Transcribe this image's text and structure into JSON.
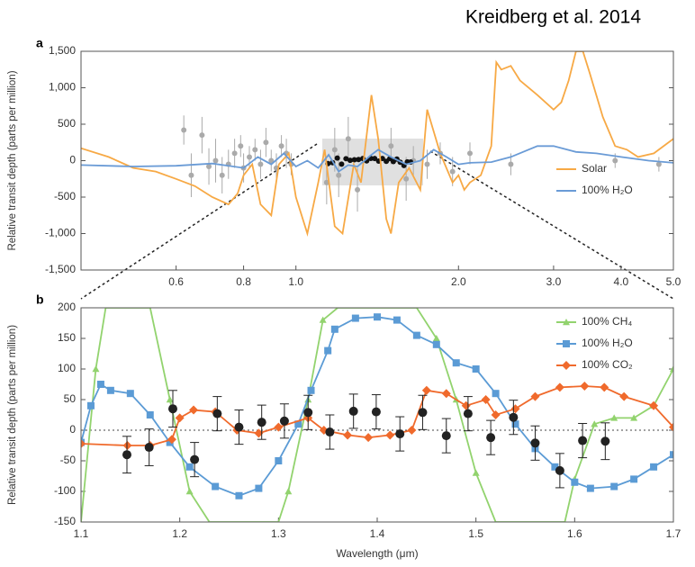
{
  "credit": "Kreidberg et al. 2014",
  "chart_data": [
    {
      "type": "line",
      "panel_label": "a",
      "ylabel": "Relative transit depth (parts per million)",
      "xscale": "log",
      "xlim": [
        0.4,
        5.0
      ],
      "xticks": [
        0.6,
        0.8,
        {
          "value": 1.0,
          "label": "1.0"
        },
        {
          "value": 2.0,
          "label": "2.0"
        },
        {
          "value": 3.0,
          "label": "3.0"
        },
        {
          "value": 4.0,
          "label": "4.0"
        },
        {
          "value": 5.0,
          "label": "5.0"
        }
      ],
      "ylim": [
        -1500,
        1500
      ],
      "yticks": [
        {
          "value": -1500,
          "label": "-1,500"
        },
        {
          "value": -1000,
          "label": "-1,000"
        },
        -500,
        0,
        500,
        {
          "value": 1000,
          "label": "1,000"
        },
        {
          "value": 1500,
          "label": "1,500"
        }
      ],
      "legend": "lower right",
      "series": [
        {
          "type": "errorbar",
          "color": "#aaaaaa",
          "x": [
            0.62,
            0.64,
            0.67,
            0.69,
            0.71,
            0.73,
            0.75,
            0.77,
            0.79,
            0.8,
            0.82,
            0.84,
            0.86,
            0.88,
            0.9,
            0.92,
            0.94,
            0.96,
            0.98,
            1.14,
            1.18,
            1.2,
            1.25,
            1.3,
            1.5,
            1.6,
            1.65,
            1.75,
            1.85,
            1.95,
            2.1,
            2.5,
            3.9,
            4.7
          ],
          "values": [
            420,
            -200,
            350,
            -80,
            0,
            -200,
            -50,
            100,
            200,
            -100,
            50,
            150,
            -50,
            250,
            0,
            -100,
            200,
            100,
            -50,
            -300,
            150,
            -200,
            300,
            -400,
            200,
            -250,
            0,
            -50,
            100,
            -150,
            100,
            -50,
            0,
            -50
          ],
          "errors": [
            200,
            300,
            250,
            250,
            300,
            250,
            200,
            200,
            150,
            200,
            150,
            150,
            200,
            200,
            150,
            200,
            150,
            200,
            150,
            300,
            300,
            300,
            300,
            300,
            250,
            300,
            200,
            200,
            150,
            200,
            150,
            150,
            100,
            100
          ]
        },
        {
          "type": "errorbar",
          "color": "#111111",
          "x": [
            1.1465,
            1.169,
            1.193,
            1.215,
            1.238,
            1.26,
            1.283,
            1.306,
            1.33,
            1.352,
            1.376,
            1.399,
            1.423,
            1.446,
            1.47,
            1.492,
            1.515,
            1.538,
            1.56,
            1.585,
            1.608,
            1.631
          ],
          "values": [
            -40,
            -28,
            35,
            -48,
            27,
            5,
            13,
            15,
            29,
            -3,
            31,
            30,
            -6,
            29,
            -9,
            27,
            -12,
            21,
            -21,
            -66,
            -17,
            -18
          ]
        },
        {
          "type": "line",
          "name": "Solar",
          "color": "#f7a945",
          "x": [
            0.4,
            0.45,
            0.5,
            0.55,
            0.6,
            0.65,
            0.7,
            0.75,
            0.78,
            0.8,
            0.83,
            0.86,
            0.9,
            0.93,
            0.97,
            1.0,
            1.05,
            1.1,
            1.13,
            1.18,
            1.22,
            1.28,
            1.32,
            1.38,
            1.42,
            1.47,
            1.5,
            1.55,
            1.62,
            1.7,
            1.75,
            1.85,
            1.95,
            2.0,
            2.05,
            2.1,
            2.2,
            2.3,
            2.35,
            2.4,
            2.5,
            2.6,
            2.8,
            3.0,
            3.1,
            3.2,
            3.3,
            3.4,
            3.5,
            3.7,
            3.9,
            4.1,
            4.3,
            4.6,
            5.0
          ],
          "values": [
            170,
            50,
            -100,
            -150,
            -250,
            -350,
            -500,
            -600,
            -450,
            -200,
            -50,
            -600,
            -750,
            -50,
            100,
            -500,
            -1000,
            -300,
            150,
            -900,
            -1000,
            -50,
            -300,
            900,
            300,
            -800,
            -1000,
            -300,
            -100,
            -400,
            700,
            100,
            -300,
            -200,
            -400,
            -300,
            -200,
            200,
            1350,
            1250,
            1300,
            1100,
            900,
            700,
            800,
            1100,
            1500,
            1500,
            1200,
            600,
            200,
            150,
            50,
            100,
            300
          ]
        },
        {
          "type": "line",
          "name": "100% H₂O",
          "color": "#6a9bd6",
          "x": [
            0.4,
            0.5,
            0.6,
            0.7,
            0.8,
            0.85,
            0.9,
            0.95,
            1.0,
            1.05,
            1.1,
            1.15,
            1.2,
            1.25,
            1.3,
            1.38,
            1.42,
            1.5,
            1.6,
            1.7,
            1.8,
            1.9,
            2.0,
            2.1,
            2.3,
            2.5,
            2.8,
            3.0,
            3.3,
            3.6,
            4.0,
            4.5,
            5.0
          ],
          "values": [
            -60,
            -80,
            -70,
            -40,
            -100,
            50,
            -50,
            100,
            -80,
            0,
            -100,
            80,
            -150,
            -60,
            -80,
            80,
            150,
            50,
            -50,
            0,
            150,
            50,
            -50,
            -30,
            -20,
            50,
            200,
            200,
            120,
            100,
            50,
            0,
            -30
          ]
        }
      ]
    },
    {
      "type": "line",
      "panel_label": "b",
      "ylabel": "Relative transit depth (parts per million)",
      "xlabel": "Wavelength (μm)",
      "xlim": [
        1.1,
        1.7
      ],
      "xticks": [
        1.1,
        1.2,
        1.3,
        1.4,
        1.5,
        1.6,
        1.7
      ],
      "ylim": [
        -150,
        200
      ],
      "yticks": [
        -150,
        -100,
        -50,
        0,
        50,
        100,
        150,
        200
      ],
      "zero_line": true,
      "legend": "upper right",
      "series": [
        {
          "type": "line",
          "name": "100% CH₄",
          "color": "#92d36e",
          "marker": "triangle",
          "x": [
            1.1,
            1.115,
            1.125,
            1.17,
            1.19,
            1.21,
            1.23,
            1.3,
            1.31,
            1.33,
            1.345,
            1.36,
            1.44,
            1.46,
            1.48,
            1.5,
            1.52,
            1.59,
            1.6,
            1.62,
            1.64,
            1.66,
            1.68,
            1.7
          ],
          "values": [
            -150,
            100,
            200,
            200,
            50,
            -100,
            -150,
            -150,
            -100,
            50,
            180,
            200,
            200,
            150,
            50,
            -70,
            -150,
            -150,
            -80,
            10,
            20,
            20,
            40,
            100
          ]
        },
        {
          "type": "line",
          "name": "100% H₂O",
          "color": "#5b9bd5",
          "marker": "square",
          "x": [
            1.1,
            1.11,
            1.12,
            1.13,
            1.15,
            1.17,
            1.19,
            1.21,
            1.236,
            1.26,
            1.28,
            1.3,
            1.32,
            1.333,
            1.35,
            1.357,
            1.378,
            1.4,
            1.42,
            1.44,
            1.46,
            1.48,
            1.5,
            1.52,
            1.54,
            1.56,
            1.58,
            1.6,
            1.616,
            1.64,
            1.66,
            1.68,
            1.7
          ],
          "values": [
            -20,
            40,
            75,
            65,
            60,
            25,
            -20,
            -60,
            -92,
            -107,
            -95,
            -50,
            10,
            65,
            130,
            165,
            183,
            185,
            180,
            155,
            140,
            110,
            100,
            60,
            10,
            -30,
            -60,
            -85,
            -95,
            -92,
            -80,
            -60,
            -40
          ]
        },
        {
          "type": "line",
          "name": "100% CO₂",
          "color": "#f06a2c",
          "marker": "diamond",
          "x": [
            1.1,
            1.147,
            1.17,
            1.192,
            1.2,
            1.214,
            1.236,
            1.258,
            1.28,
            1.3,
            1.33,
            1.346,
            1.37,
            1.391,
            1.413,
            1.435,
            1.45,
            1.47,
            1.49,
            1.51,
            1.52,
            1.54,
            1.56,
            1.585,
            1.61,
            1.63,
            1.65,
            1.68,
            1.7
          ],
          "values": [
            -22,
            -25,
            -25,
            -15,
            20,
            33,
            30,
            0,
            -5,
            5,
            20,
            0,
            -8,
            -12,
            -8,
            0,
            65,
            60,
            40,
            50,
            25,
            35,
            55,
            70,
            72,
            70,
            55,
            40,
            5
          ]
        },
        {
          "type": "errorbar",
          "color": "#222222",
          "x": [
            1.1465,
            1.169,
            1.193,
            1.215,
            1.238,
            1.26,
            1.283,
            1.306,
            1.33,
            1.352,
            1.376,
            1.399,
            1.423,
            1.446,
            1.47,
            1.492,
            1.515,
            1.538,
            1.56,
            1.585,
            1.608,
            1.631
          ],
          "values": [
            -40,
            -28,
            35,
            -48,
            27,
            5,
            13,
            15,
            29,
            -3,
            31,
            30,
            -6,
            29,
            -9,
            27,
            -12,
            21,
            -21,
            -66,
            -17,
            -18
          ],
          "errors": [
            30,
            30,
            30,
            28,
            28,
            28,
            28,
            28,
            28,
            28,
            28,
            28,
            28,
            28,
            28,
            28,
            28,
            28,
            28,
            28,
            28,
            30
          ]
        }
      ]
    }
  ]
}
